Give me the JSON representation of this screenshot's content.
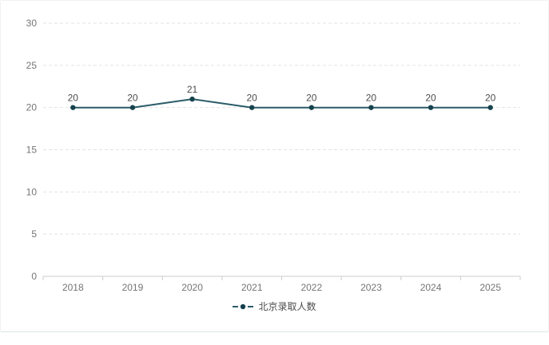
{
  "chart_data": {
    "type": "line",
    "title": "",
    "xlabel": "",
    "ylabel": "",
    "categories": [
      "2018",
      "2019",
      "2020",
      "2021",
      "2022",
      "2023",
      "2024",
      "2025"
    ],
    "series": [
      {
        "name": "北京录取人数",
        "values": [
          20,
          20,
          21,
          20,
          20,
          20,
          20,
          20
        ]
      }
    ],
    "ylim": [
      0,
      30
    ],
    "y_ticks": [
      0,
      5,
      10,
      15,
      20,
      25,
      30
    ],
    "grid": "horizontal-dashed",
    "show_data_labels": true,
    "legend_position": "bottom-center"
  },
  "legend": {
    "items": [
      {
        "label": "北京录取人数",
        "color": "#2a5c68",
        "point_color": "#16424d"
      }
    ]
  },
  "colors": {
    "line": "#2a5c68",
    "point": "#16424d",
    "grid": "#e3e3e3",
    "axis": "#cccccc",
    "axis_label": "#757575",
    "data_label": "#4c4c4c",
    "legend_text": "#4c4c4c"
  }
}
